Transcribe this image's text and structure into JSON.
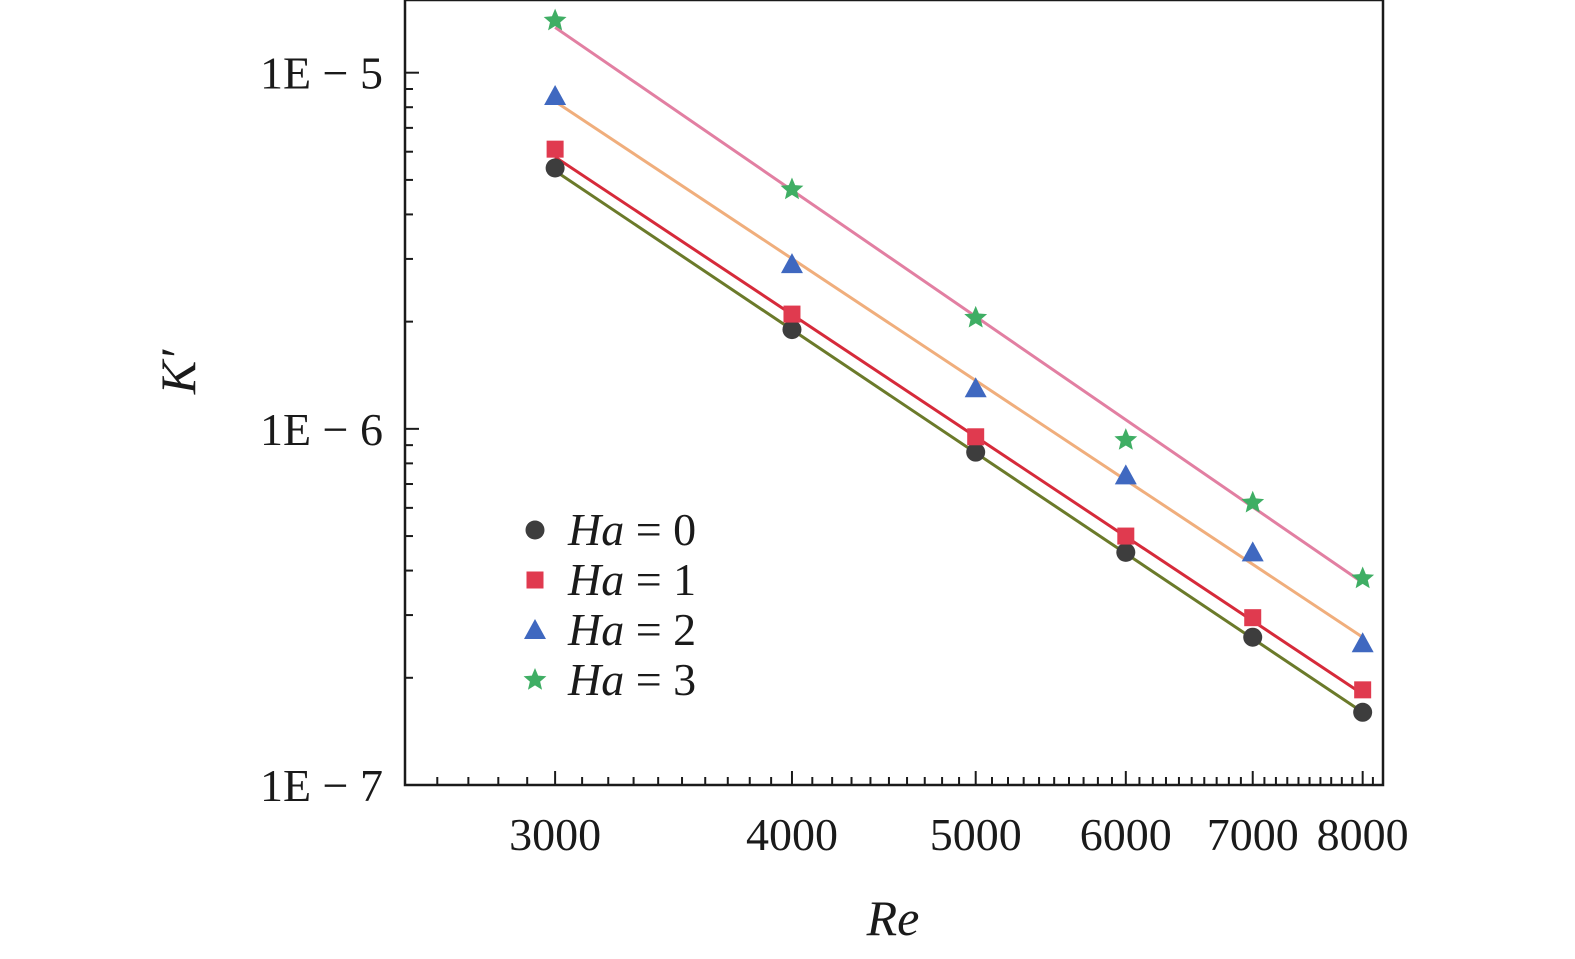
{
  "chart_data": {
    "type": "scatter",
    "title": "",
    "xlabel": "Re",
    "ylabel": "K′",
    "xscale": "log",
    "yscale": "log",
    "xlim": [
      2500,
      8200
    ],
    "ylim": [
      1e-07,
      1.6e-05
    ],
    "x_ticks": [
      {
        "value": 3000,
        "label": "3000"
      },
      {
        "value": 4000,
        "label": "4000"
      },
      {
        "value": 5000,
        "label": "5000"
      },
      {
        "value": 6000,
        "label": "6000"
      },
      {
        "value": 7000,
        "label": "7000"
      },
      {
        "value": 8000,
        "label": "8000"
      }
    ],
    "y_ticks": [
      {
        "value": 1e-07,
        "label": "1E − 7"
      },
      {
        "value": 1e-06,
        "label": "1E − 6"
      },
      {
        "value": 1e-05,
        "label": "1E − 5"
      }
    ],
    "legend_position": "lower-left",
    "series": [
      {
        "name": "Ha = 0",
        "var": "Ha",
        "val": "0",
        "marker": "circle",
        "color": "#3d3d3d",
        "fit_color": "#6b7a2a",
        "x": [
          3000,
          4000,
          5000,
          6000,
          7000,
          8000
        ],
        "y": [
          5.4e-06,
          1.9e-06,
          8.6e-07,
          4.5e-07,
          2.6e-07,
          1.6e-07
        ],
        "fit": {
          "x": [
            3000,
            8000
          ],
          "y": [
            5.3e-06,
            1.6e-07
          ]
        }
      },
      {
        "name": "Ha = 1",
        "var": "Ha",
        "val": "1",
        "marker": "square",
        "color": "#e03a4f",
        "fit_color": "#d62a3a",
        "x": [
          3000,
          4000,
          5000,
          6000,
          7000,
          8000
        ],
        "y": [
          6.1e-06,
          2.1e-06,
          9.5e-07,
          5e-07,
          2.95e-07,
          1.85e-07
        ],
        "fit": {
          "x": [
            3000,
            8000
          ],
          "y": [
            5.8e-06,
            1.8e-07
          ]
        }
      },
      {
        "name": "Ha = 2",
        "var": "Ha",
        "val": "2",
        "marker": "triangle",
        "color": "#3f68c0",
        "fit_color": "#f0ae7c",
        "x": [
          3000,
          4000,
          5000,
          6000,
          7000,
          8000
        ],
        "y": [
          8.6e-06,
          2.9e-06,
          1.3e-06,
          7.4e-07,
          4.5e-07,
          2.5e-07
        ],
        "fit": {
          "x": [
            3000,
            8000
          ],
          "y": [
            8.3e-06,
            2.6e-07
          ]
        }
      },
      {
        "name": "Ha = 3",
        "var": "Ha",
        "val": "3",
        "marker": "star",
        "color": "#3fae64",
        "fit_color": "#e27fa2",
        "x": [
          3000,
          4000,
          5000,
          6000,
          7000,
          8000
        ],
        "y": [
          1.4e-05,
          4.7e-06,
          2.05e-06,
          9.3e-07,
          6.2e-07,
          3.8e-07
        ],
        "fit": {
          "x": [
            3000,
            8000
          ],
          "y": [
            1.34e-05,
            3.7e-07
          ]
        }
      }
    ]
  }
}
